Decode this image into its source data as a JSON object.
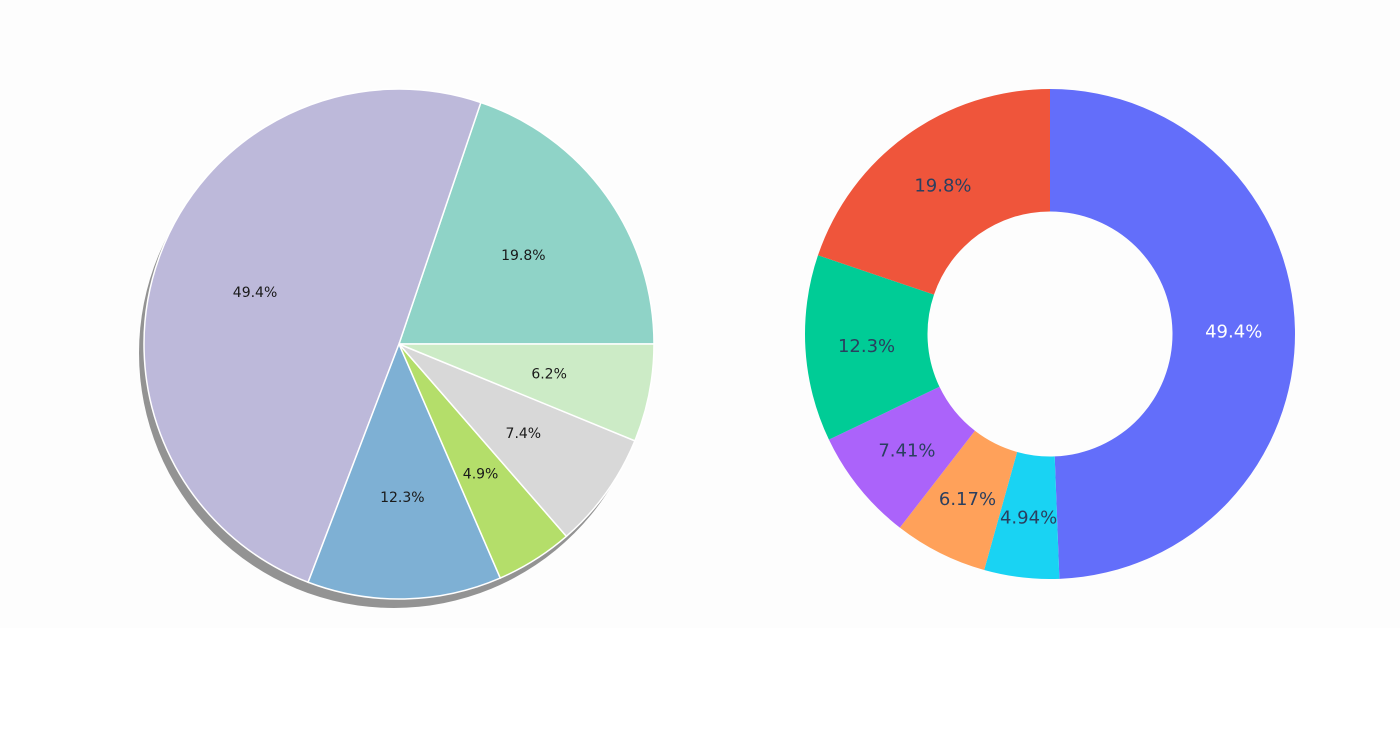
{
  "chart_data": [
    {
      "type": "pie",
      "title": "",
      "shadow": true,
      "start_angle_deg": 0,
      "direction": "counterclockwise",
      "label_position": "inside",
      "slices": [
        {
          "value": 19.8,
          "label": "19.8%",
          "color": "#8fd3c7"
        },
        {
          "value": 49.4,
          "label": "49.4%",
          "color": "#bdb9da"
        },
        {
          "value": 12.3,
          "label": "12.3%",
          "color": "#7eb0d4"
        },
        {
          "value": 4.9,
          "label": "4.9%",
          "color": "#b4de6a"
        },
        {
          "value": 7.4,
          "label": "7.4%",
          "color": "#d8d8d8"
        },
        {
          "value": 6.2,
          "label": "6.2%",
          "color": "#ccebc6"
        }
      ]
    },
    {
      "type": "pie",
      "title": "",
      "hole": 0.5,
      "start_angle_deg": 90,
      "direction": "clockwise",
      "label_position": "inside",
      "slices": [
        {
          "value": 49.4,
          "label": "49.4%",
          "color": "#636efa",
          "label_color": "#ffffff"
        },
        {
          "value": 4.94,
          "label": "4.94%",
          "color": "#19d3f3",
          "label_color": "#2a3f5f"
        },
        {
          "value": 6.17,
          "label": "6.17%",
          "color": "#ffa15a",
          "label_color": "#2a3f5f"
        },
        {
          "value": 7.41,
          "label": "7.41%",
          "color": "#ab63fa",
          "label_color": "#2a3f5f"
        },
        {
          "value": 12.3,
          "label": "12.3%",
          "color": "#00cc96",
          "label_color": "#2a3f5f"
        },
        {
          "value": 19.8,
          "label": "19.8%",
          "color": "#ef553b",
          "label_color": "#2a3f5f"
        }
      ]
    }
  ]
}
